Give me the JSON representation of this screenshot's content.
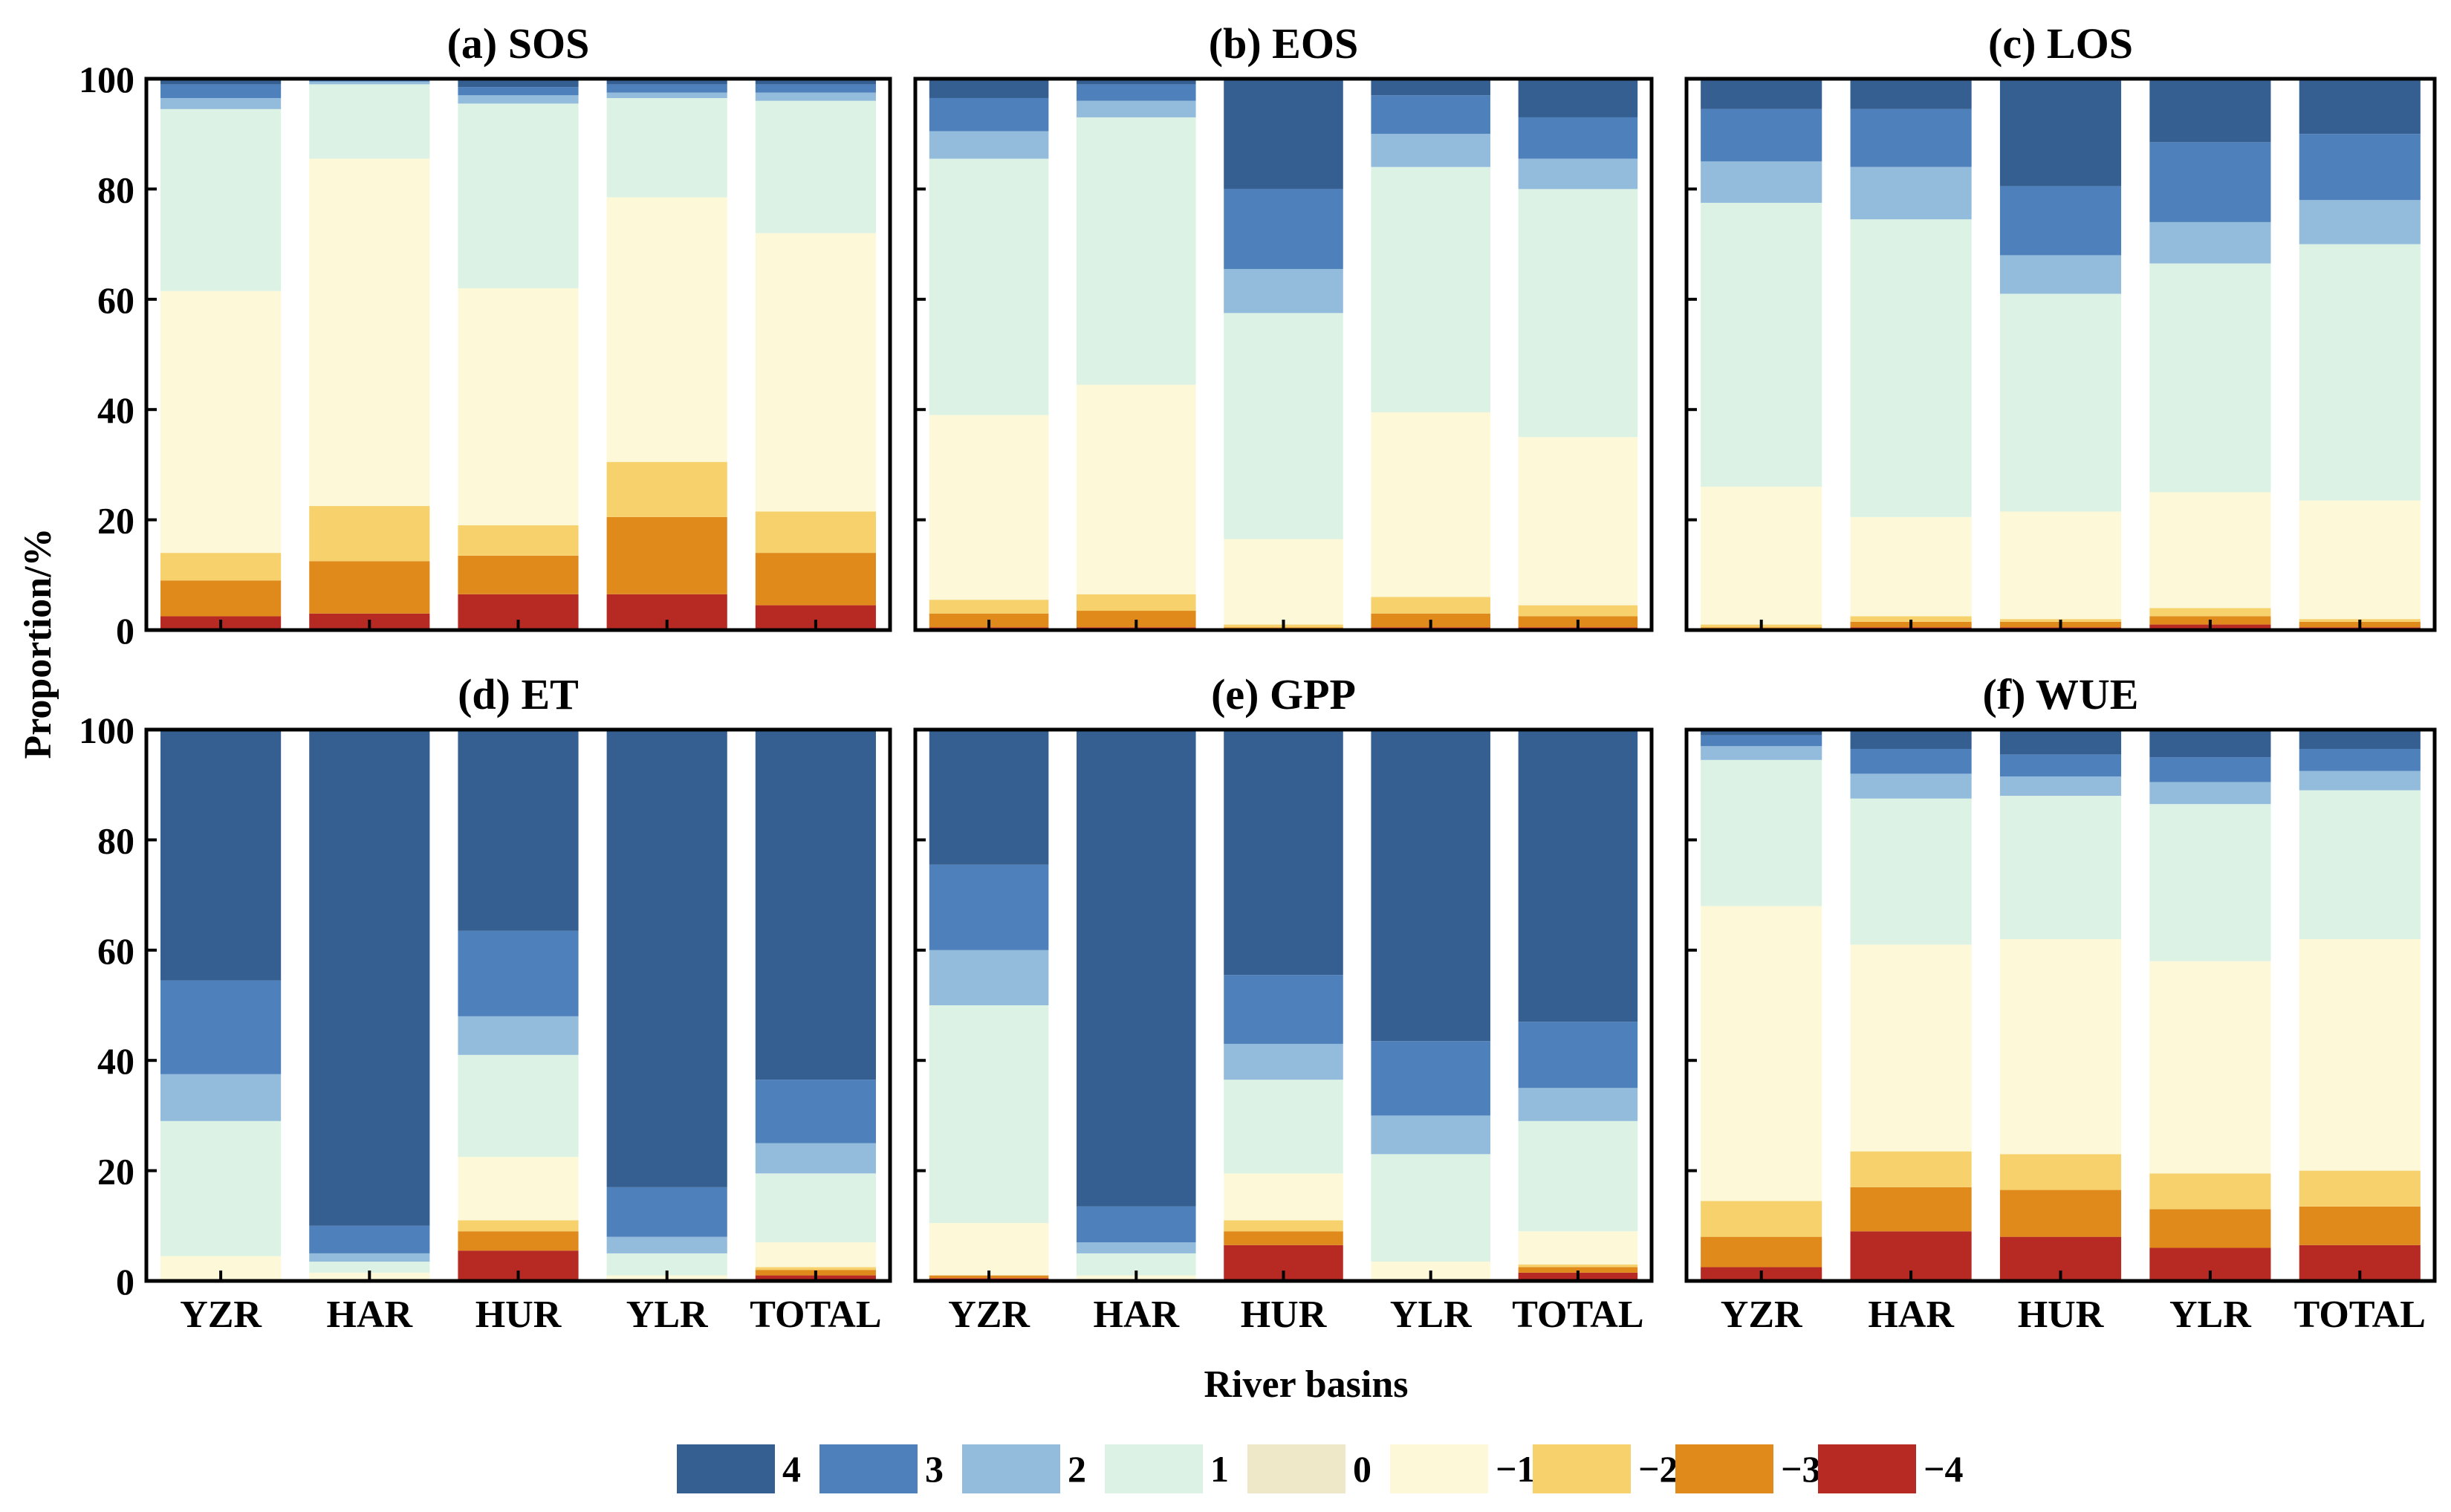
{
  "figure": {
    "ylabel": "Proportion/%",
    "xlabel": "River basins",
    "ylim": [
      0,
      100
    ],
    "yticks": [
      "0",
      "20",
      "40",
      "60",
      "80",
      "100"
    ]
  },
  "legend": {
    "entries": [
      {
        "label": "4",
        "color": "#355e91"
      },
      {
        "label": "3",
        "color": "#4e80bc"
      },
      {
        "label": "2",
        "color": "#92bbdc"
      },
      {
        "label": "1",
        "color": "#dcf2e5"
      },
      {
        "label": "0",
        "color": "#eee8c8"
      },
      {
        "label": "−1",
        "color": "#fdf9d8"
      },
      {
        "label": "−2",
        "color": "#f6d16c"
      },
      {
        "label": "−3",
        "color": "#df8a1b"
      },
      {
        "label": "−4",
        "color": "#b72a24"
      }
    ]
  },
  "chart_data": [
    {
      "type": "bar",
      "stacked": true,
      "title": "(a) SOS",
      "categories": [
        "YZR",
        "HAR",
        "HUR",
        "YLR",
        "TOTAL"
      ],
      "ylim": [
        0,
        100
      ],
      "series": [
        {
          "name": "−4",
          "values": [
            2.5,
            3,
            6.5,
            6.5,
            4.5
          ]
        },
        {
          "name": "−3",
          "values": [
            6.5,
            9.5,
            7,
            14,
            9.5
          ]
        },
        {
          "name": "−2",
          "values": [
            5,
            10,
            5.5,
            10,
            7.5
          ]
        },
        {
          "name": "−1",
          "values": [
            47.5,
            63,
            43,
            48,
            50.5
          ]
        },
        {
          "name": "0",
          "values": [
            0,
            0,
            0,
            0,
            0
          ]
        },
        {
          "name": "1",
          "values": [
            33,
            13.5,
            33.5,
            18,
            24
          ]
        },
        {
          "name": "2",
          "values": [
            2,
            0.5,
            1.5,
            1,
            1.5
          ]
        },
        {
          "name": "3",
          "values": [
            2.5,
            0.5,
            1.5,
            1.5,
            1.5
          ]
        },
        {
          "name": "4",
          "values": [
            1,
            0,
            1.5,
            1,
            1
          ]
        }
      ]
    },
    {
      "type": "bar",
      "stacked": true,
      "title": "(b) EOS",
      "categories": [
        "YZR",
        "HAR",
        "HUR",
        "YLR",
        "TOTAL"
      ],
      "ylim": [
        0,
        100
      ],
      "series": [
        {
          "name": "−4",
          "values": [
            0.5,
            0.5,
            0,
            0.5,
            0.5
          ]
        },
        {
          "name": "−3",
          "values": [
            2.5,
            3,
            0.5,
            2.5,
            2
          ]
        },
        {
          "name": "−2",
          "values": [
            2.5,
            3,
            0.5,
            3,
            2
          ]
        },
        {
          "name": "−1",
          "values": [
            33.5,
            38,
            15.5,
            33.5,
            30.5
          ]
        },
        {
          "name": "0",
          "values": [
            0,
            0,
            0,
            0,
            0
          ]
        },
        {
          "name": "1",
          "values": [
            46.5,
            48.5,
            41,
            44.5,
            45
          ]
        },
        {
          "name": "2",
          "values": [
            5,
            3,
            8,
            6,
            5.5
          ]
        },
        {
          "name": "3",
          "values": [
            6,
            3,
            14.5,
            7,
            7.5
          ]
        },
        {
          "name": "4",
          "values": [
            3.5,
            1,
            20,
            3,
            7
          ]
        }
      ]
    },
    {
      "type": "bar",
      "stacked": true,
      "title": "(c) LOS",
      "categories": [
        "YZR",
        "HAR",
        "HUR",
        "YLR",
        "TOTAL"
      ],
      "ylim": [
        0,
        100
      ],
      "series": [
        {
          "name": "−4",
          "values": [
            0,
            0.5,
            0.5,
            1,
            0.5
          ]
        },
        {
          "name": "−3",
          "values": [
            0.5,
            1,
            1,
            1.5,
            1
          ]
        },
        {
          "name": "−2",
          "values": [
            0.5,
            1,
            0.5,
            1.5,
            0.5
          ]
        },
        {
          "name": "−1",
          "values": [
            25,
            18,
            19.5,
            21,
            21.5
          ]
        },
        {
          "name": "0",
          "values": [
            0,
            0,
            0,
            0,
            0
          ]
        },
        {
          "name": "1",
          "values": [
            51.5,
            54,
            39.5,
            41.5,
            46.5
          ]
        },
        {
          "name": "2",
          "values": [
            7.5,
            9.5,
            7,
            7.5,
            8
          ]
        },
        {
          "name": "3",
          "values": [
            9.5,
            10.5,
            12.5,
            14.5,
            12
          ]
        },
        {
          "name": "4",
          "values": [
            5.5,
            5.5,
            19.5,
            11.5,
            10
          ]
        }
      ]
    },
    {
      "type": "bar",
      "stacked": true,
      "title": "(d) ET",
      "categories": [
        "YZR",
        "HAR",
        "HUR",
        "YLR",
        "TOTAL"
      ],
      "ylim": [
        0,
        100
      ],
      "series": [
        {
          "name": "−4",
          "values": [
            0,
            0,
            5.5,
            0,
            1
          ]
        },
        {
          "name": "−3",
          "values": [
            0,
            0,
            3.5,
            0,
            1
          ]
        },
        {
          "name": "−2",
          "values": [
            0,
            0,
            2,
            0,
            0.5
          ]
        },
        {
          "name": "−1",
          "values": [
            4.5,
            1.5,
            11.5,
            1,
            4.5
          ]
        },
        {
          "name": "0",
          "values": [
            0,
            0,
            0,
            0,
            0
          ]
        },
        {
          "name": "1",
          "values": [
            24.5,
            2,
            18.5,
            4,
            12.5
          ]
        },
        {
          "name": "2",
          "values": [
            8.5,
            1.5,
            7,
            3,
            5.5
          ]
        },
        {
          "name": "3",
          "values": [
            17,
            5,
            15.5,
            9,
            11.5
          ]
        },
        {
          "name": "4",
          "values": [
            45.5,
            90,
            36.5,
            83,
            63.5
          ]
        }
      ]
    },
    {
      "type": "bar",
      "stacked": true,
      "title": "(e) GPP",
      "categories": [
        "YZR",
        "HAR",
        "HUR",
        "YLR",
        "TOTAL"
      ],
      "ylim": [
        0,
        100
      ],
      "series": [
        {
          "name": "−4",
          "values": [
            0.5,
            0,
            6.5,
            0,
            1.5
          ]
        },
        {
          "name": "−3",
          "values": [
            0.5,
            0,
            2.5,
            0,
            1
          ]
        },
        {
          "name": "−2",
          "values": [
            0,
            0,
            2,
            0,
            0.5
          ]
        },
        {
          "name": "−1",
          "values": [
            9.5,
            1,
            8.5,
            3.5,
            6
          ]
        },
        {
          "name": "0",
          "values": [
            0,
            0,
            0,
            0,
            0
          ]
        },
        {
          "name": "1",
          "values": [
            39.5,
            4,
            17,
            19.5,
            20
          ]
        },
        {
          "name": "2",
          "values": [
            10,
            2,
            6.5,
            7,
            6
          ]
        },
        {
          "name": "3",
          "values": [
            15.5,
            6.5,
            12.5,
            13.5,
            12
          ]
        },
        {
          "name": "4",
          "values": [
            24.5,
            86.5,
            44.5,
            56.5,
            53
          ]
        }
      ]
    },
    {
      "type": "bar",
      "stacked": true,
      "title": "(f) WUE",
      "categories": [
        "YZR",
        "HAR",
        "HUR",
        "YLR",
        "TOTAL"
      ],
      "ylim": [
        0,
        100
      ],
      "series": [
        {
          "name": "−4",
          "values": [
            2.5,
            9,
            8,
            6,
            6.5
          ]
        },
        {
          "name": "−3",
          "values": [
            5.5,
            8,
            8.5,
            7,
            7
          ]
        },
        {
          "name": "−2",
          "values": [
            6.5,
            6.5,
            6.5,
            6.5,
            6.5
          ]
        },
        {
          "name": "−1",
          "values": [
            53.5,
            37.5,
            39,
            38.5,
            42
          ]
        },
        {
          "name": "0",
          "values": [
            0,
            0,
            0,
            0,
            0
          ]
        },
        {
          "name": "1",
          "values": [
            26.5,
            26.5,
            26,
            28.5,
            27
          ]
        },
        {
          "name": "2",
          "values": [
            2.5,
            4.5,
            3.5,
            4,
            3.5
          ]
        },
        {
          "name": "3",
          "values": [
            2,
            4.5,
            4,
            4.5,
            4
          ]
        },
        {
          "name": "4",
          "values": [
            1,
            3.5,
            4.5,
            5,
            3.5
          ]
        }
      ]
    }
  ]
}
